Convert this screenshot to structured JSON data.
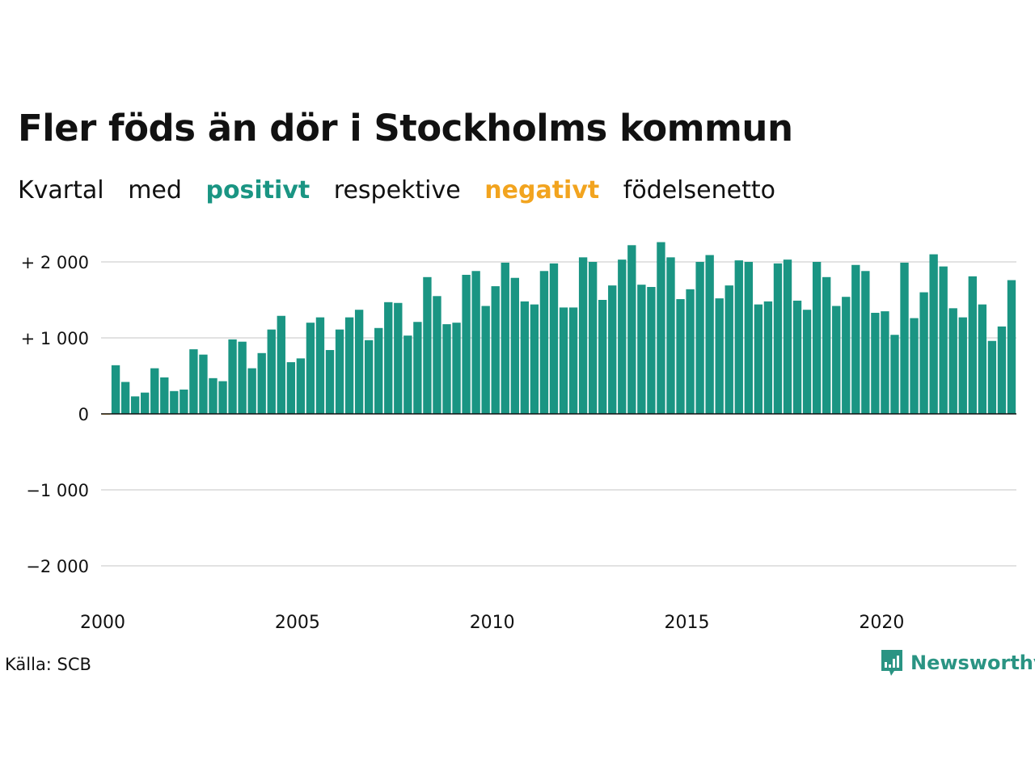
{
  "title": "Fler föds än dör i Stockholms kommun",
  "subtitle": {
    "w1": "Kvartal",
    "w2": "med",
    "positive": "positivt",
    "w3": "respektive",
    "negative": "negativt",
    "w4": "födelsenetto"
  },
  "source": "Källa: SCB",
  "brand": {
    "name": "Newsworthy",
    "icon": "newsworthy-logo-icon"
  },
  "colors": {
    "positive": "#1a9583",
    "negative": "#f2a41f",
    "grid": "#e2e2e2",
    "zero": "#111111"
  },
  "chart_data": {
    "type": "bar",
    "title": "Fler föds än dör i Stockholms kommun",
    "xlabel": "",
    "ylabel": "",
    "ylim": [
      -2400,
      2400
    ],
    "yticks": [
      {
        "value": 2000,
        "label": "+ 2 000"
      },
      {
        "value": 1000,
        "label": "+ 1 000"
      },
      {
        "value": 0,
        "label": "0"
      },
      {
        "value": -1000,
        "label": "−1 000"
      },
      {
        "value": -2000,
        "label": "−2 000"
      }
    ],
    "xticks": [
      {
        "value": 2000,
        "label": "2000"
      },
      {
        "value": 2005,
        "label": "2005"
      },
      {
        "value": 2010,
        "label": "2010"
      },
      {
        "value": 2015,
        "label": "2015"
      },
      {
        "value": 2020,
        "label": "2020"
      }
    ],
    "grid": true,
    "start": "2000 Q1",
    "values": [
      -10,
      640,
      420,
      230,
      280,
      600,
      480,
      300,
      320,
      850,
      780,
      470,
      430,
      980,
      950,
      600,
      800,
      1110,
      1290,
      680,
      730,
      1200,
      1270,
      840,
      1110,
      1270,
      1370,
      970,
      1130,
      1470,
      1460,
      1030,
      1210,
      1800,
      1550,
      1180,
      1200,
      1830,
      1880,
      1420,
      1680,
      1990,
      1790,
      1480,
      1440,
      1880,
      1980,
      1400,
      1400,
      2060,
      2000,
      1500,
      1690,
      2030,
      2220,
      1700,
      1670,
      2260,
      2060,
      1510,
      1640,
      2000,
      2090,
      1520,
      1690,
      2020,
      2000,
      1440,
      1480,
      1980,
      2030,
      1490,
      1370,
      2000,
      1800,
      1420,
      1540,
      1960,
      1880,
      1330,
      1350,
      1040,
      1990,
      1260,
      1600,
      2100,
      1940,
      1390,
      1270,
      1810,
      1440,
      960,
      1150,
      1760
    ]
  }
}
